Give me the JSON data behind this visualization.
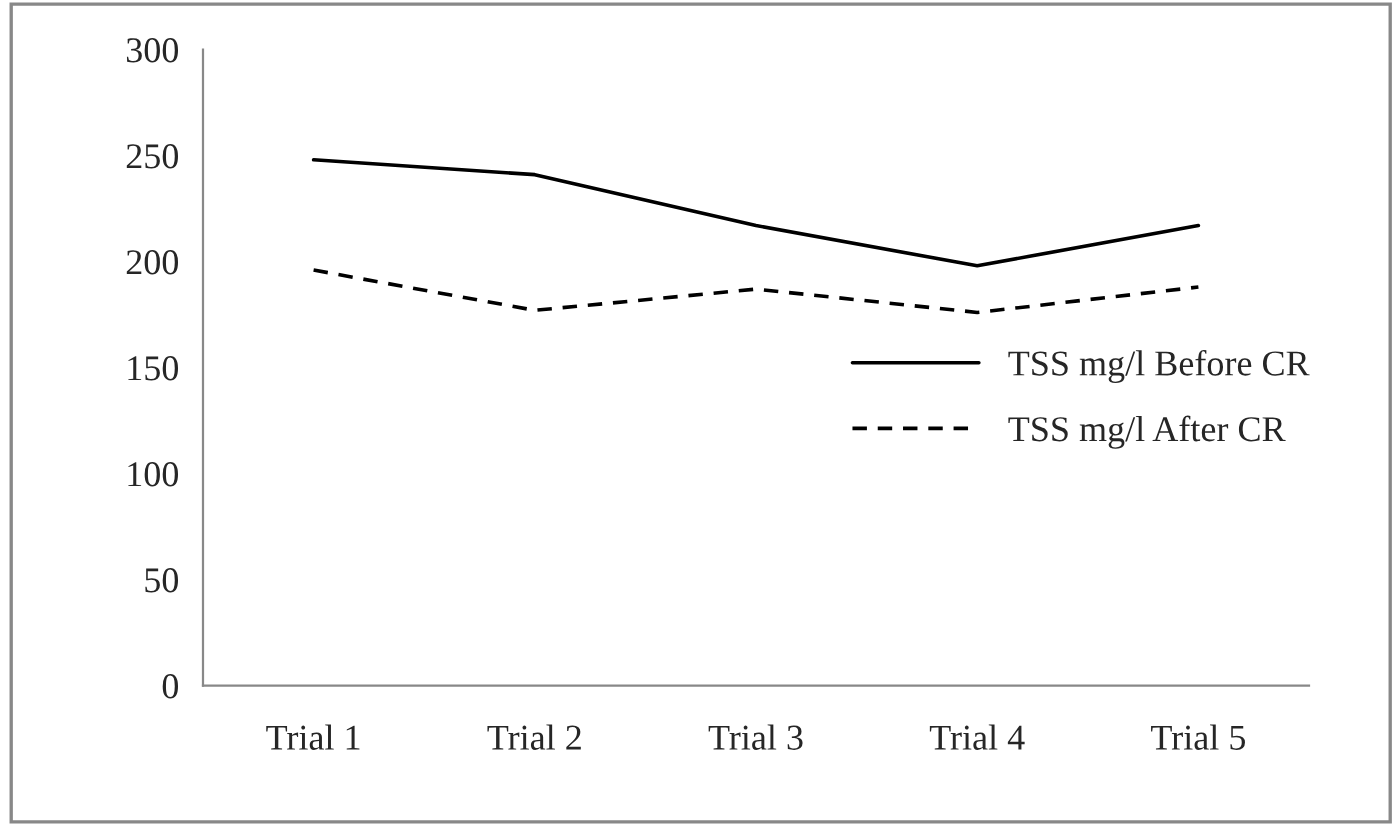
{
  "chart_data": {
    "type": "line",
    "categories": [
      "Trial 1",
      "Trial 2",
      "Trial 3",
      "Trial 4",
      "Trial 5"
    ],
    "series": [
      {
        "name": "TSS mg/l Before CR",
        "color": "#000000",
        "line_style": "solid",
        "values": [
          248,
          241,
          217,
          198,
          217
        ]
      },
      {
        "name": "TSS mg/l After CR",
        "color": "#000000",
        "line_style": "dashed",
        "values": [
          196,
          177,
          187,
          176,
          188
        ]
      }
    ],
    "ylim": [
      0,
      300
    ],
    "yticks": [
      0,
      50,
      100,
      150,
      200,
      250,
      300
    ],
    "grid": false,
    "legend": "right",
    "marker": "none"
  }
}
